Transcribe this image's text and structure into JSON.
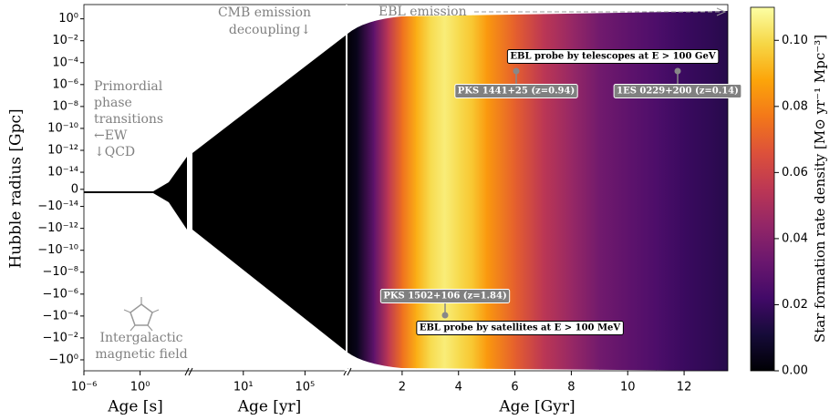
{
  "chart_data": {
    "type": "heatmap",
    "ylabel": "Hubble radius [Gpc]",
    "yscale": "symlog",
    "ylim": [
      -10,
      20
    ],
    "yticks": [
      {
        "value": 1,
        "label": "10⁰"
      },
      {
        "value": 0.01,
        "label": "10⁻²"
      },
      {
        "value": 0.0001,
        "label": "10⁻⁴"
      },
      {
        "value": 1e-06,
        "label": "10⁻⁶"
      },
      {
        "value": 1e-08,
        "label": "10⁻⁸"
      },
      {
        "value": 1e-10,
        "label": "10⁻¹⁰"
      },
      {
        "value": 1e-12,
        "label": "10⁻¹²"
      },
      {
        "value": 1e-14,
        "label": "10⁻¹⁴"
      },
      0,
      {
        "value": -1e-14,
        "label": "−10⁻¹⁴"
      },
      {
        "value": -1e-12,
        "label": "−10⁻¹²"
      },
      {
        "value": -1e-10,
        "label": "−10⁻¹⁰"
      },
      {
        "value": -1e-08,
        "label": "−10⁻⁸"
      },
      {
        "value": -1e-06,
        "label": "−10⁻⁶"
      },
      {
        "value": -0.0001,
        "label": "−10⁻⁴"
      },
      {
        "value": -0.01,
        "label": "−10⁻²"
      },
      {
        "value": -1,
        "label": "−10⁰"
      }
    ],
    "panels": [
      {
        "xlabel": "Age [s]",
        "xscale": "log",
        "xlim": [
          1e-06,
          100000.0
        ],
        "xticks": [
          {
            "value": 1e-06,
            "label": "10⁻⁶"
          },
          {
            "value": 1,
            "label": "10⁰"
          }
        ]
      },
      {
        "xlabel": "Age [yr]",
        "xscale": "log",
        "xlim": [
          0.005,
          50000000.0
        ],
        "xticks": [
          {
            "value": 10,
            "label": "10¹"
          },
          {
            "value": 100000,
            "label": "10⁵"
          }
        ]
      },
      {
        "xlabel": "Age [Gyr]",
        "xscale": "linear",
        "xlim": [
          0.03,
          13.55
        ],
        "xticks": [
          2,
          4,
          6,
          8,
          10,
          12
        ],
        "x": [
          0.03,
          0.4,
          1,
          1.5,
          2,
          2.5,
          3,
          3.5,
          4,
          4.5,
          5,
          6,
          7,
          8,
          9,
          10,
          11,
          12,
          13,
          13.55
        ],
        "values": [
          0,
          0.005,
          0.03,
          0.055,
          0.075,
          0.09,
          0.1,
          0.105,
          0.1,
          0.095,
          0.085,
          0.07,
          0.055,
          0.045,
          0.035,
          0.03,
          0.025,
          0.02,
          0.017,
          0.015
        ]
      }
    ],
    "colormap": [
      "#000004",
      "#160b39",
      "#420a68",
      "#6a176e",
      "#932667",
      "#bc3754",
      "#dd513a",
      "#f37819",
      "#fca50a",
      "#f6d746",
      "#fcffa4"
    ],
    "colorbar": {
      "label": "Star formation rate density [M⊙ yr⁻¹ Mpc⁻³]",
      "lim": [
        0,
        0.11
      ],
      "ticks": [
        {
          "value": 0,
          "label": "0.00"
        },
        {
          "value": 0.02,
          "label": "0.02"
        },
        {
          "value": 0.04,
          "label": "0.04"
        },
        {
          "value": 0.06,
          "label": "0.06"
        },
        {
          "value": 0.08,
          "label": "0.08"
        },
        {
          "value": 0.1,
          "label": "0.10"
        }
      ]
    },
    "annotations": {
      "ebl_emission": "EBL emission",
      "cmb": [
        "CMB emission",
        "decoupling↓"
      ],
      "phase": [
        "Primordial",
        "phase",
        "transitions",
        "←EW",
        "↓QCD"
      ],
      "magnetic": [
        "Intergalactic",
        "magnetic field"
      ],
      "telescopes": "EBL probe by telescopes at E > 100 GeV",
      "satellites": "EBL probe by satellites at E > 100 MeV",
      "sources": [
        "PKS 1441+25 (z=0.94)",
        "1ES 0229+200 (z=0.14)",
        "PKS 1502+106 (z=1.84)"
      ]
    }
  }
}
